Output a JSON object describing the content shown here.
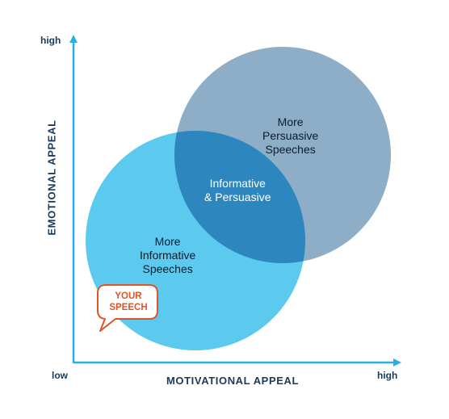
{
  "axes": {
    "y_title": "EMOTIONAL APPEAL",
    "x_title": "MOTIVATIONAL APPEAL",
    "y_high": "high",
    "x_low": "low",
    "x_high": "high"
  },
  "regions": {
    "persuasive": [
      "More",
      "Persuasive",
      "Speeches"
    ],
    "overlap": [
      "Informative",
      "& Persuasive"
    ],
    "informative": [
      "More",
      "Informative",
      "Speeches"
    ]
  },
  "callout": [
    "YOUR",
    "SPEECH"
  ],
  "colors": {
    "axis": "#29aee6",
    "informative_circle": "#5ccaef",
    "persuasive_circle": "#8daec6",
    "overlap": "#2d86bd",
    "callout_text": "#e0542a",
    "callout_border": "#e0542a"
  }
}
